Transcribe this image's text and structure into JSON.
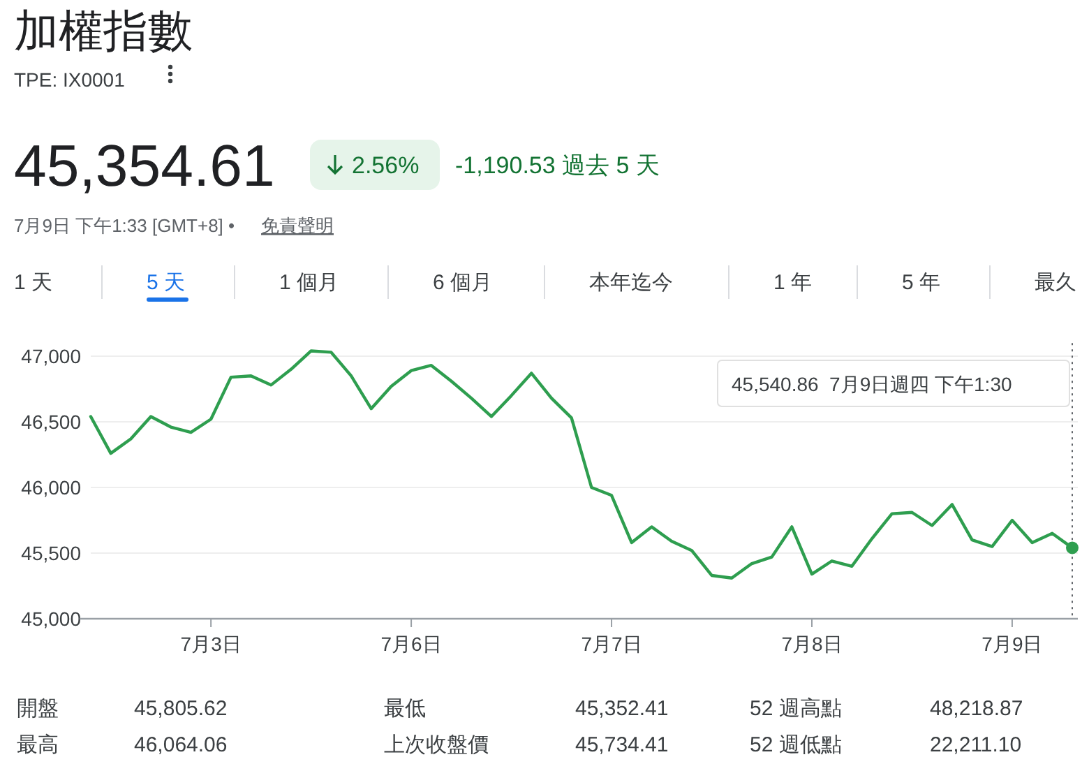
{
  "chart_data": {
    "type": "line",
    "title": "加權指數",
    "subtitle": "TPE: IX0001",
    "categories": [
      null,
      null,
      null,
      null,
      null,
      null,
      "7月3日",
      null,
      null,
      null,
      null,
      null,
      null,
      null,
      null,
      null,
      "7月6日",
      null,
      null,
      null,
      null,
      null,
      null,
      null,
      null,
      null,
      "7月7日",
      null,
      null,
      null,
      null,
      null,
      null,
      null,
      null,
      null,
      "7月8日",
      null,
      null,
      null,
      null,
      null,
      null,
      null,
      null,
      null,
      "7月9日",
      null,
      null,
      null
    ],
    "series": [
      {
        "color": "#2e9e4f",
        "values": [
          46540,
          46260,
          46370,
          46540,
          46460,
          46420,
          46520,
          46840,
          46850,
          46780,
          46900,
          47040,
          47030,
          46850,
          46600,
          46770,
          46890,
          46930,
          46810,
          46680,
          46540,
          46700,
          46870,
          46680,
          46530,
          46000,
          45940,
          45580,
          45700,
          45590,
          45520,
          45330,
          45310,
          45420,
          45470,
          45700,
          45340,
          45440,
          45400,
          45610,
          45800,
          45810,
          45710,
          45870,
          45600,
          45550,
          45750,
          45580,
          45650,
          45540
        ]
      }
    ],
    "ylim": [
      45000,
      47100
    ],
    "yticks": [
      {
        "value": 45000,
        "label": "45,000"
      },
      {
        "value": 45500,
        "label": "45,500"
      },
      {
        "value": 46000,
        "label": "46,000"
      },
      {
        "value": 46500,
        "label": "46,500"
      },
      {
        "value": 47000,
        "label": "47,000"
      }
    ],
    "grid": "y",
    "line_style": "solid",
    "annotations": [
      "45,354.61",
      "2.56%",
      "-1,190.53 過去 5 天",
      "7月9日 下午1:33 [GMT+8] •",
      "免責聲明",
      "1 天",
      "5 天",
      "1 個月",
      "6 個月",
      "本年迄今",
      "1 年",
      "5 年",
      "最久",
      "開盤",
      "45,805.62",
      "最低",
      "45,352.41",
      "52 週高點",
      "48,218.87",
      "最高",
      "46,064.06",
      "上次收盤價",
      "45,734.41",
      "52 週低點",
      "22,211.10",
      "45,540.86  7月9日週四 下午1:30"
    ]
  }
}
